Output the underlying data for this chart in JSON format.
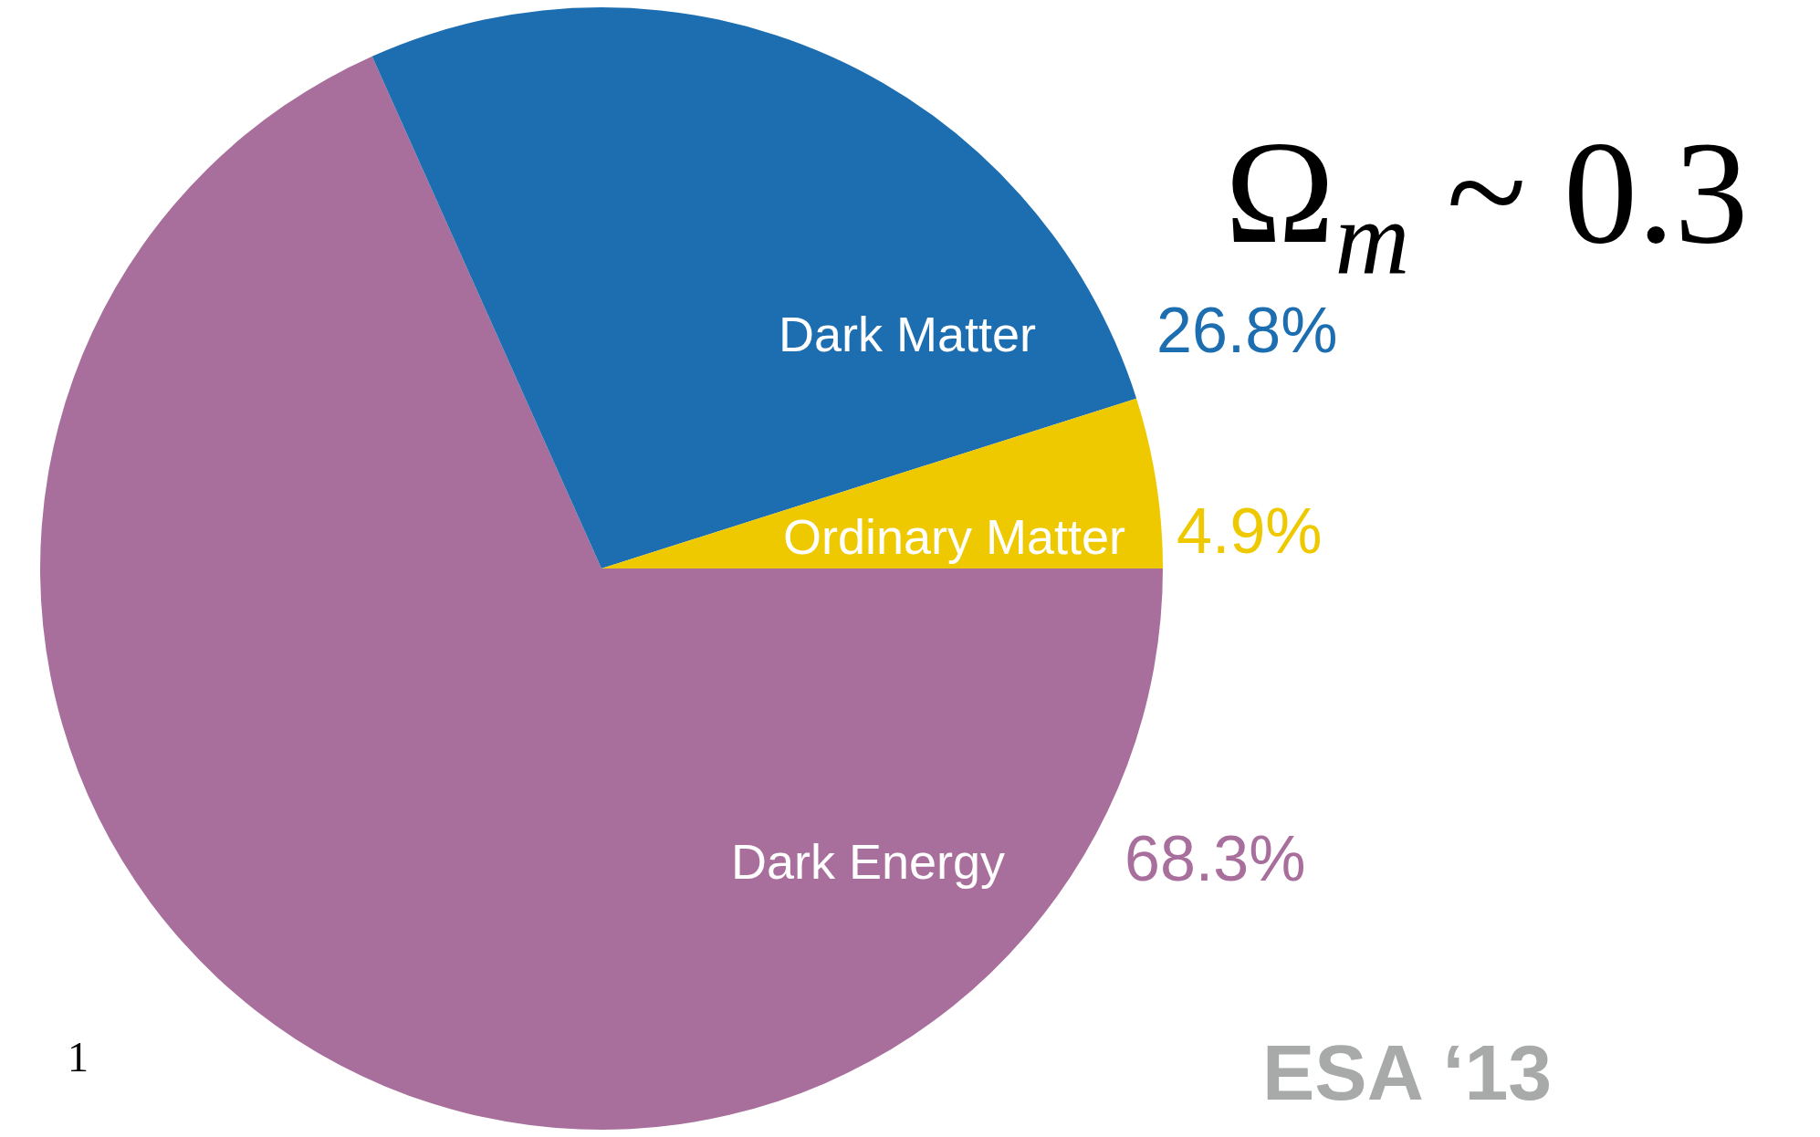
{
  "chart_data": {
    "type": "pie",
    "categories": [
      "Dark Energy",
      "Dark Matter",
      "Ordinary Matter"
    ],
    "values": [
      68.3,
      26.8,
      4.9
    ],
    "colors": [
      "#a86f9c",
      "#1d6eb1",
      "#efc900"
    ],
    "value_labels": [
      "68.3%",
      "26.8%",
      "4.9%"
    ],
    "annotations": [
      "Ω$_{m}$ ~ 0.3",
      "ESA ‘13",
      "1"
    ]
  }
}
